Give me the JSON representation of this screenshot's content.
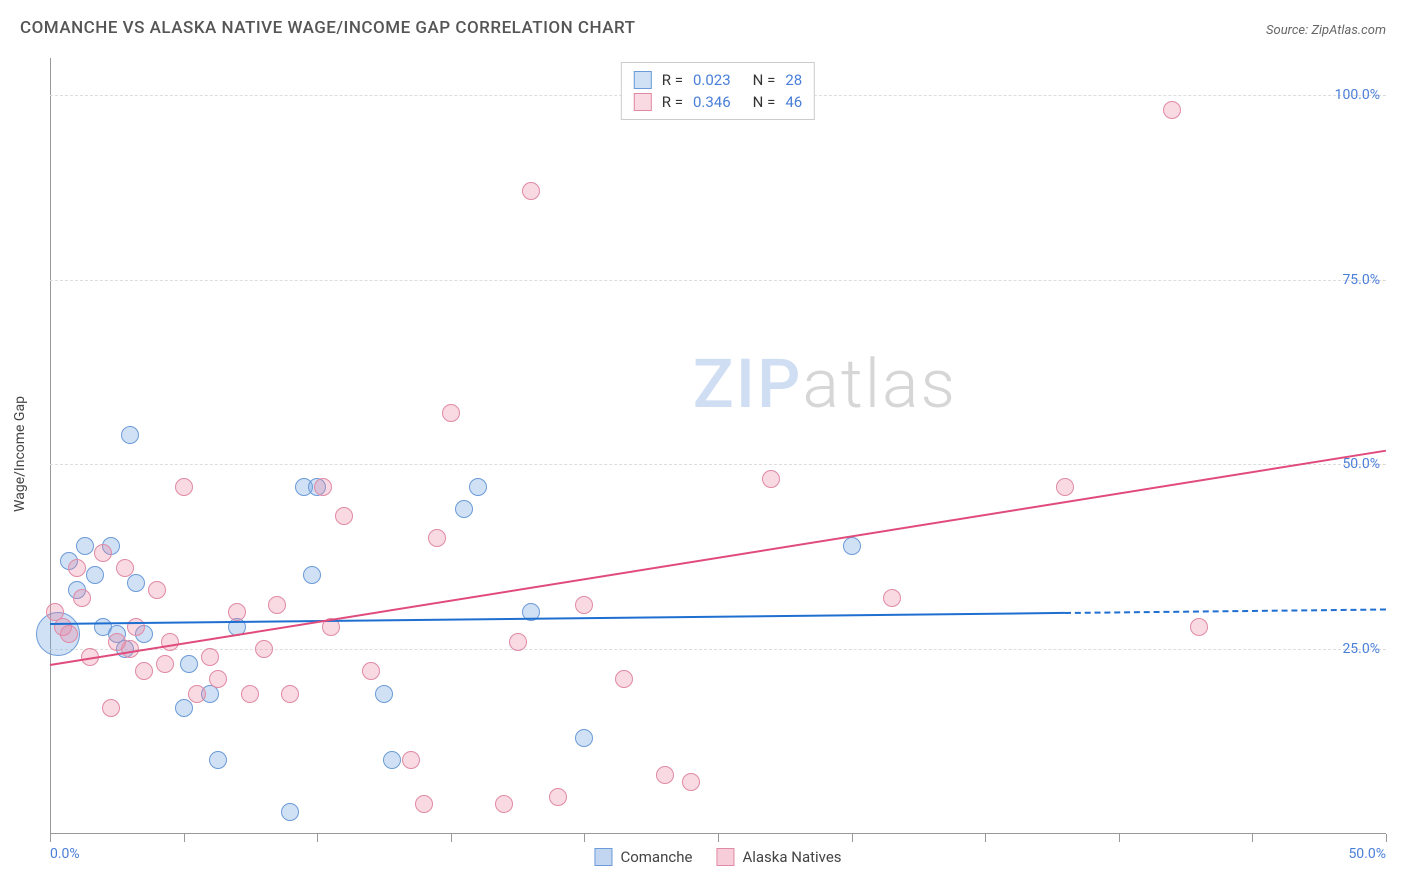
{
  "header": {
    "title": "COMANCHE VS ALASKA NATIVE WAGE/INCOME GAP CORRELATION CHART",
    "source_prefix": "Source: ",
    "source_name": "ZipAtlas.com"
  },
  "chart": {
    "type": "scatter",
    "y_axis_label": "Wage/Income Gap",
    "xlim": [
      0,
      50
    ],
    "ylim": [
      0,
      105
    ],
    "x_ticks": [
      0,
      5,
      10,
      15,
      20,
      25,
      30,
      35,
      40,
      45,
      50
    ],
    "x_tick_labels": {
      "0": "0.0%",
      "50": "50.0%"
    },
    "y_gridlines": [
      25,
      50,
      75,
      100
    ],
    "y_tick_labels": {
      "25": "25.0%",
      "50": "50.0%",
      "75": "75.0%",
      "100": "100.0%"
    },
    "grid_color": "#dddddd",
    "axis_color": "#999999",
    "label_color": "#4a7fd8",
    "background_color": "#ffffff",
    "watermark": {
      "zip": "ZIP",
      "atlas": "atlas"
    },
    "series": [
      {
        "name": "Comanche",
        "fill": "rgba(120,165,225,0.35)",
        "stroke": "#6b9bd8",
        "marker_radius": 9,
        "R": "0.023",
        "N": "28",
        "trend": {
          "x1": 0,
          "y1": 28.5,
          "x2": 38,
          "y2": 30.0,
          "dash_to_x": 50,
          "color": "#1f6fd0"
        },
        "points": [
          [
            0.3,
            27,
            22
          ],
          [
            0.7,
            37,
            9
          ],
          [
            1.0,
            33,
            9
          ],
          [
            1.3,
            39,
            9
          ],
          [
            1.7,
            35,
            9
          ],
          [
            2.0,
            28,
            9
          ],
          [
            2.3,
            39,
            9
          ],
          [
            2.5,
            27,
            9
          ],
          [
            2.8,
            25,
            9
          ],
          [
            3.0,
            54,
            9
          ],
          [
            3.2,
            34,
            9
          ],
          [
            3.5,
            27,
            9
          ],
          [
            5.0,
            17,
            9
          ],
          [
            5.2,
            23,
            9
          ],
          [
            6.0,
            19,
            9
          ],
          [
            6.3,
            10,
            9
          ],
          [
            7.0,
            28,
            9
          ],
          [
            9.0,
            3,
            9
          ],
          [
            9.5,
            47,
            9
          ],
          [
            9.8,
            35,
            9
          ],
          [
            10.0,
            47,
            9
          ],
          [
            12.5,
            19,
            9
          ],
          [
            12.8,
            10,
            9
          ],
          [
            15.5,
            44,
            9
          ],
          [
            16.0,
            47,
            9
          ],
          [
            18.0,
            30,
            9
          ],
          [
            20.0,
            13,
            9
          ],
          [
            30.0,
            39,
            9
          ]
        ]
      },
      {
        "name": "Alaska Natives",
        "fill": "rgba(235,130,160,0.3)",
        "stroke": "#e08aa5",
        "marker_radius": 9,
        "R": "0.346",
        "N": "46",
        "trend": {
          "x1": 0,
          "y1": 23,
          "x2": 50,
          "y2": 52,
          "color": "#e04b7b"
        },
        "points": [
          [
            0.2,
            30,
            9
          ],
          [
            0.5,
            28,
            9
          ],
          [
            0.7,
            27,
            9
          ],
          [
            1.0,
            36,
            9
          ],
          [
            1.2,
            32,
            9
          ],
          [
            1.5,
            24,
            9
          ],
          [
            2.0,
            38,
            9
          ],
          [
            2.3,
            17,
            9
          ],
          [
            2.5,
            26,
            9
          ],
          [
            2.8,
            36,
            9
          ],
          [
            3.0,
            25,
            9
          ],
          [
            3.2,
            28,
            9
          ],
          [
            3.5,
            22,
            9
          ],
          [
            4.0,
            33,
            9
          ],
          [
            4.3,
            23,
            9
          ],
          [
            4.5,
            26,
            9
          ],
          [
            5.0,
            47,
            9
          ],
          [
            5.5,
            19,
            9
          ],
          [
            6.0,
            24,
            9
          ],
          [
            6.3,
            21,
            9
          ],
          [
            7.0,
            30,
            9
          ],
          [
            7.5,
            19,
            9
          ],
          [
            8.0,
            25,
            9
          ],
          [
            8.5,
            31,
            9
          ],
          [
            9.0,
            19,
            9
          ],
          [
            10.2,
            47,
            9
          ],
          [
            10.5,
            28,
            9
          ],
          [
            11.0,
            43,
            9
          ],
          [
            12.0,
            22,
            9
          ],
          [
            13.5,
            10,
            9
          ],
          [
            14.0,
            4,
            9
          ],
          [
            14.5,
            40,
            9
          ],
          [
            15.0,
            57,
            9
          ],
          [
            17.0,
            4,
            9
          ],
          [
            17.5,
            26,
            9
          ],
          [
            18.0,
            87,
            9
          ],
          [
            19.0,
            5,
            9
          ],
          [
            20.0,
            31,
            9
          ],
          [
            21.5,
            21,
            9
          ],
          [
            23.0,
            8,
            9
          ],
          [
            24.0,
            7,
            9
          ],
          [
            27.0,
            48,
            9
          ],
          [
            31.5,
            32,
            9
          ],
          [
            38.0,
            47,
            9
          ],
          [
            42.0,
            98,
            9
          ],
          [
            43.0,
            28,
            9
          ]
        ]
      }
    ],
    "legend_bottom": [
      {
        "label": "Comanche",
        "fill": "rgba(120,165,225,0.45)",
        "stroke": "#6b9bd8"
      },
      {
        "label": "Alaska Natives",
        "fill": "rgba(235,130,160,0.4)",
        "stroke": "#e08aa5"
      }
    ]
  }
}
